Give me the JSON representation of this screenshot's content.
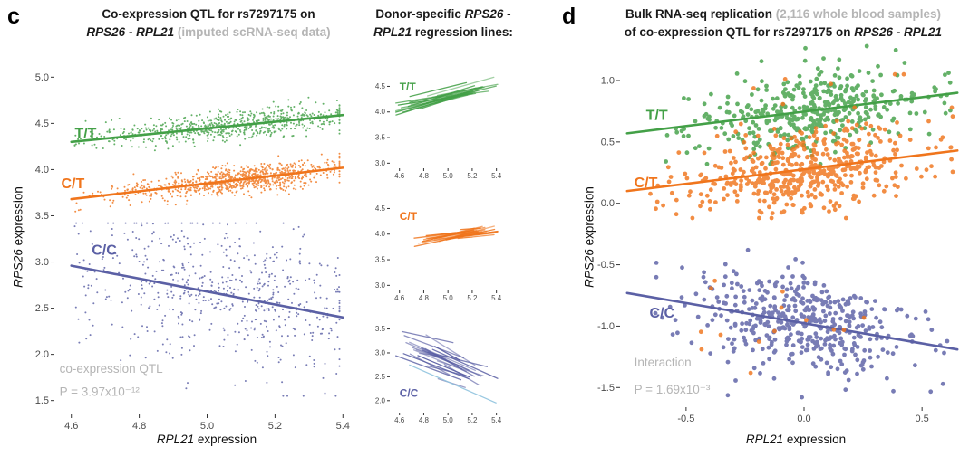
{
  "colors": {
    "green": "#43a047",
    "orange": "#f0751c",
    "blue": "#5b60a5",
    "lightblue": "#8fc3de",
    "gray_text": "#b5b5b5"
  },
  "panel_c": {
    "letter": "c",
    "title_line1": "Co-expression QTL for rs7297175 on",
    "title_line2_genes": "RPS26 - RPL21",
    "title_line2_note": " (imputed scRNA-seq data)",
    "xlabel_gene": "RPL21",
    "xlabel_rest": " expression",
    "ylabel_gene": "RPS26",
    "ylabel_rest": " expression"
  },
  "panel_mid": {
    "title_part1": "Donor-specific ",
    "title_genes1": "RPS26 -",
    "title_genes2": "RPL21",
    "title_part2": " regression lines:"
  },
  "panel_d": {
    "letter": "d",
    "title_line1_main": "Bulk RNA-seq replication ",
    "title_line1_note": "(2,116 whole blood samples)",
    "title_line2_main": "of co-expression QTL for rs7297175 on ",
    "title_line2_genes": "RPS26 - RPL21",
    "xlabel_gene": "RPL21",
    "xlabel_rest": " expression",
    "ylabel_gene": "RPS26",
    "ylabel_rest": " expression"
  },
  "chart_data": [
    {
      "id": "c-main",
      "type": "scatter",
      "title": "Co-expression QTL for rs7297175 on RPS26 - RPL21 (imputed scRNA-seq data)",
      "xlabel": "RPL21 expression",
      "ylabel": "RPS26 expression",
      "xlim": [
        4.55,
        5.45
      ],
      "ylim": [
        1.35,
        5.15
      ],
      "xtick_values": [
        4.6,
        4.8,
        5.0,
        5.2,
        5.4
      ],
      "xtick_labels": [
        "4.6",
        "4.8",
        "5.0",
        "5.2",
        "5.4"
      ],
      "ytick_values": [
        1.5,
        2.0,
        2.5,
        3.0,
        3.5,
        4.0,
        4.5,
        5.0
      ],
      "ytick_labels": [
        "1.5",
        "2.0",
        "2.5",
        "3.0",
        "3.5",
        "4.0",
        "4.5",
        "5.0"
      ],
      "annotations": [
        {
          "text": "co-expression QTL",
          "x": 4.565,
          "y": 1.8
        },
        {
          "text": "P = 3.97x10⁻¹²",
          "x": 4.565,
          "y": 1.55
        }
      ],
      "series": [
        {
          "name": "T/T",
          "color": "green",
          "label_pos": [
            4.61,
            4.34
          ],
          "seed": 11,
          "n": 700,
          "x_center": 5.08,
          "x_sd": 0.16,
          "x_min": 4.61,
          "x_max": 5.39,
          "uniform_frac": 0.22,
          "line": [
            [
              4.6,
              4.3
            ],
            [
              5.4,
              4.59
            ]
          ],
          "y_sd": 0.075,
          "y_min": 4.02,
          "y_max": 4.78,
          "r": 1.0,
          "draw_line": true
        },
        {
          "name": "C/T",
          "color": "orange",
          "label_pos": [
            4.57,
            3.8
          ],
          "seed": 22,
          "n": 900,
          "x_center": 5.1,
          "x_sd": 0.14,
          "x_min": 4.61,
          "x_max": 5.39,
          "uniform_frac": 0.18,
          "line": [
            [
              4.6,
              3.68
            ],
            [
              5.4,
              4.02
            ]
          ],
          "y_sd": 0.07,
          "y_min": 3.5,
          "y_max": 4.28,
          "r": 1.0,
          "draw_line": true
        },
        {
          "name": "C/C",
          "color": "blue",
          "label_pos": [
            4.66,
            3.08
          ],
          "seed": 33,
          "n": 600,
          "x_center": 5.05,
          "x_sd": 0.19,
          "x_min": 4.61,
          "x_max": 5.39,
          "uniform_frac": 0.42,
          "line": [
            [
              4.6,
              2.96
            ],
            [
              5.4,
              2.4
            ]
          ],
          "y_sd": 0.38,
          "y_min": 1.55,
          "y_max": 3.42,
          "r": 1.0,
          "draw_line": true
        }
      ]
    },
    {
      "id": "donor-tt",
      "type": "donor-lines",
      "label": "T/T",
      "color": "green",
      "label_pos": [
        4.6,
        4.42
      ],
      "xlim": [
        4.52,
        5.44
      ],
      "ylim": [
        2.9,
        4.72
      ],
      "xtick_values": [
        4.6,
        4.8,
        5.0,
        5.2,
        5.4
      ],
      "xtick_labels": [
        "4.6",
        "4.8",
        "5.0",
        "5.2",
        "5.4"
      ],
      "ytick_values": [
        3.0,
        3.5,
        4.0,
        4.5
      ],
      "ytick_labels": [
        "3.0",
        "3.5",
        "4.0",
        "4.5"
      ],
      "seed": 44,
      "n": 28,
      "trend": [
        [
          4.6,
          4.07
        ],
        [
          5.4,
          4.55
        ]
      ],
      "mid_range": [
        4.75,
        5.2
      ],
      "half_range": [
        0.1,
        0.32
      ],
      "slope_sd": 0.18,
      "y_jitter": 0.06
    },
    {
      "id": "donor-ct",
      "type": "donor-lines",
      "label": "C/T",
      "color": "orange",
      "label_pos": [
        4.6,
        4.28
      ],
      "xlim": [
        4.52,
        5.44
      ],
      "ylim": [
        2.9,
        4.72
      ],
      "xtick_values": [
        4.6,
        4.8,
        5.0,
        5.2,
        5.4
      ],
      "xtick_labels": [
        "4.6",
        "4.8",
        "5.0",
        "5.2",
        "5.4"
      ],
      "ytick_values": [
        3.0,
        3.5,
        4.0,
        4.5
      ],
      "ytick_labels": [
        "3.0",
        "3.5",
        "4.0",
        "4.5"
      ],
      "seed": 55,
      "n": 30,
      "trend": [
        [
          4.6,
          3.8
        ],
        [
          5.4,
          4.1
        ]
      ],
      "mid_range": [
        4.93,
        5.24
      ],
      "half_range": [
        0.07,
        0.26
      ],
      "slope_sd": 0.15,
      "y_jitter": 0.05
    },
    {
      "id": "donor-cc",
      "type": "donor-lines",
      "label": "C/C",
      "color": "blue",
      "label_pos": [
        4.6,
        2.08
      ],
      "xlim": [
        4.52,
        5.44
      ],
      "ylim": [
        1.75,
        3.7
      ],
      "xtick_values": [
        4.6,
        4.8,
        5.0,
        5.2,
        5.4
      ],
      "xtick_labels": [
        "4.6",
        "4.8",
        "5.0",
        "5.2",
        "5.4"
      ],
      "ytick_values": [
        2.0,
        2.5,
        3.0,
        3.5
      ],
      "ytick_labels": [
        "2.0",
        "2.5",
        "3.0",
        "3.5"
      ],
      "seed": 66,
      "n": 25,
      "trend": [
        [
          4.6,
          3.18
        ],
        [
          5.4,
          2.35
        ]
      ],
      "mid_range": [
        4.83,
        5.18
      ],
      "half_range": [
        0.1,
        0.3
      ],
      "slope_sd": 0.3,
      "y_jitter": 0.14,
      "extra_lines": [
        {
          "color": "lightblue",
          "pts": [
            [
              4.68,
              2.75
            ],
            [
              5.4,
              1.95
            ]
          ]
        }
      ]
    },
    {
      "id": "d-bulk",
      "type": "scatter",
      "title": "Bulk RNA-seq replication (2,116 whole blood samples) of co-expression QTL for rs7297175 on RPS26 - RPL21",
      "xlabel": "RPL21 expression",
      "ylabel": "RPS26 expression",
      "xlim": [
        -0.78,
        0.68
      ],
      "ylim": [
        -1.66,
        1.14
      ],
      "xtick_values": [
        -0.5,
        0.0,
        0.5
      ],
      "xtick_labels": [
        "-0.5",
        "0.0",
        "0.5"
      ],
      "ytick_values": [
        -1.5,
        -1.0,
        -0.5,
        0.0,
        0.5,
        1.0
      ],
      "ytick_labels": [
        "-1.5",
        "-1.0",
        "-0.5",
        "0.0",
        "0.5",
        "1.0"
      ],
      "annotations": [
        {
          "text": "Interaction",
          "x": -0.72,
          "y": -1.33
        },
        {
          "text": "P = 1.69x10⁻³",
          "x": -0.72,
          "y": -1.55
        }
      ],
      "series": [
        {
          "name": "T/T",
          "color": "green",
          "label_pos": [
            -0.67,
            0.68
          ],
          "seed": 7,
          "n": 420,
          "x_center": 0.05,
          "x_sd": 0.2,
          "x_min": -0.62,
          "x_max": 0.62,
          "uniform_frac": 0.18,
          "line": [
            [
              -0.75,
              0.57
            ],
            [
              0.65,
              0.9
            ]
          ],
          "y_sd": 0.16,
          "y_min": 0.32,
          "y_max": 1.28,
          "r": 2.4,
          "draw_line": true
        },
        {
          "name": "C/T",
          "color": "orange",
          "label_pos": [
            -0.72,
            0.13
          ],
          "seed": 8,
          "n": 500,
          "x_center": 0.0,
          "x_sd": 0.21,
          "x_min": -0.68,
          "x_max": 0.63,
          "uniform_frac": 0.16,
          "line": [
            [
              -0.75,
              0.1
            ],
            [
              0.65,
              0.43
            ]
          ],
          "y_sd": 0.17,
          "y_min": -0.12,
          "y_max": 0.78,
          "r": 2.4,
          "draw_line": true
        },
        {
          "name": "C/C",
          "color": "blue",
          "label_pos": [
            -0.655,
            -0.93
          ],
          "seed": 9,
          "n": 460,
          "x_center": 0.0,
          "x_sd": 0.2,
          "x_min": -0.63,
          "x_max": 0.63,
          "uniform_frac": 0.16,
          "line": [
            [
              -0.75,
              -0.73
            ],
            [
              0.65,
              -1.19
            ]
          ],
          "y_sd": 0.19,
          "y_min": -1.58,
          "y_max": -0.38,
          "r": 2.4,
          "draw_line": true
        },
        {
          "name": "",
          "color": "orange",
          "label_pos": [
            0,
            0
          ],
          "seed": 12,
          "n": 14,
          "x_center": 0.0,
          "x_sd": 0.22,
          "x_min": -0.45,
          "x_max": 0.5,
          "uniform_frac": 0.5,
          "line": [
            [
              -0.75,
              -0.85
            ],
            [
              0.65,
              -1.05
            ]
          ],
          "y_sd": 0.28,
          "y_min": -1.5,
          "y_max": -0.45,
          "r": 2.4,
          "draw_line": false
        },
        {
          "name": "",
          "color": "orange",
          "label_pos": [
            0,
            0
          ],
          "seed": 13,
          "n": 7,
          "x_center": 0.1,
          "x_sd": 0.25,
          "x_min": -0.35,
          "x_max": 0.55,
          "uniform_frac": 0.4,
          "line": [
            [
              -0.75,
              0.8
            ],
            [
              0.65,
              0.9
            ]
          ],
          "y_sd": 0.14,
          "y_min": 0.55,
          "y_max": 1.05,
          "r": 2.4,
          "draw_line": false
        }
      ]
    }
  ]
}
